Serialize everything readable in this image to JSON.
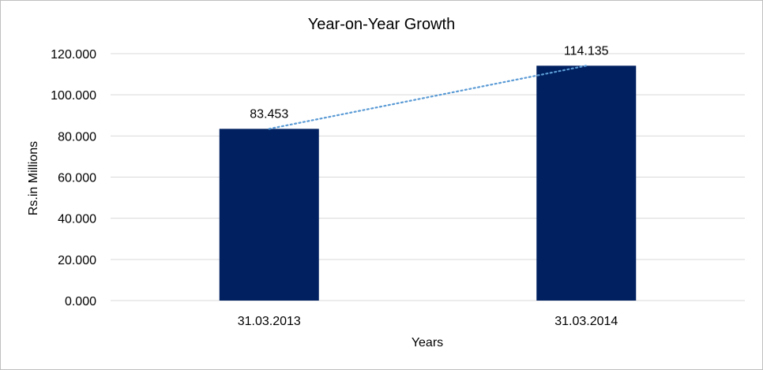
{
  "chart_data": {
    "type": "bar",
    "title": "Year-on-Year Growth",
    "xlabel": "Years",
    "ylabel": "Rs.in Millions",
    "categories": [
      "31.03.2013",
      "31.03.2014"
    ],
    "values": [
      83.453,
      114.135
    ],
    "data_labels": [
      "83.453",
      "114.135"
    ],
    "ylim": [
      0,
      120
    ],
    "yticks": [
      "0.000",
      "20.000",
      "40.000",
      "60.000",
      "80.000",
      "100.000",
      "120.000"
    ],
    "grid": true,
    "legend": "none",
    "trendline": {
      "type": "linear",
      "style": "dotted"
    },
    "colors": {
      "bar": "#002060",
      "trendline": "#5b9bd5",
      "grid": "#d9d9d9"
    }
  }
}
